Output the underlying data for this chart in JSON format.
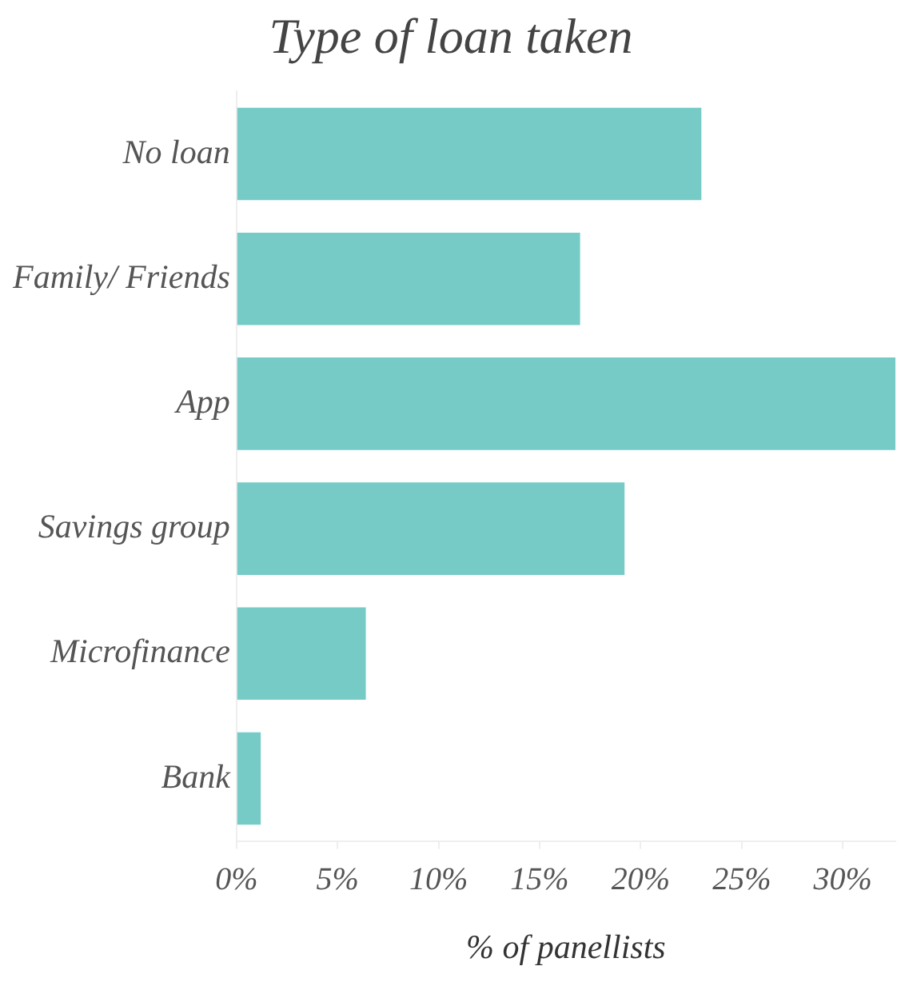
{
  "chart_data": {
    "type": "bar",
    "orientation": "horizontal",
    "title": "Type of loan taken",
    "xlabel": "% of panellists",
    "categories": [
      "No loan",
      "Family/ Friends",
      "App",
      "Savings group",
      "Microfinance",
      "Bank"
    ],
    "values": [
      23.0,
      17.0,
      32.6,
      19.2,
      6.4,
      1.2
    ],
    "color": "#76cbc7",
    "xlim": [
      0,
      32.6
    ],
    "xticks": [
      {
        "value": 0,
        "label": "0%"
      },
      {
        "value": 5,
        "label": "5%"
      },
      {
        "value": 10,
        "label": "10%"
      },
      {
        "value": 15,
        "label": "15%"
      },
      {
        "value": 20,
        "label": "20%"
      },
      {
        "value": 25,
        "label": "25%"
      },
      {
        "value": 30,
        "label": "30%"
      }
    ],
    "grid": false,
    "legend": false
  }
}
